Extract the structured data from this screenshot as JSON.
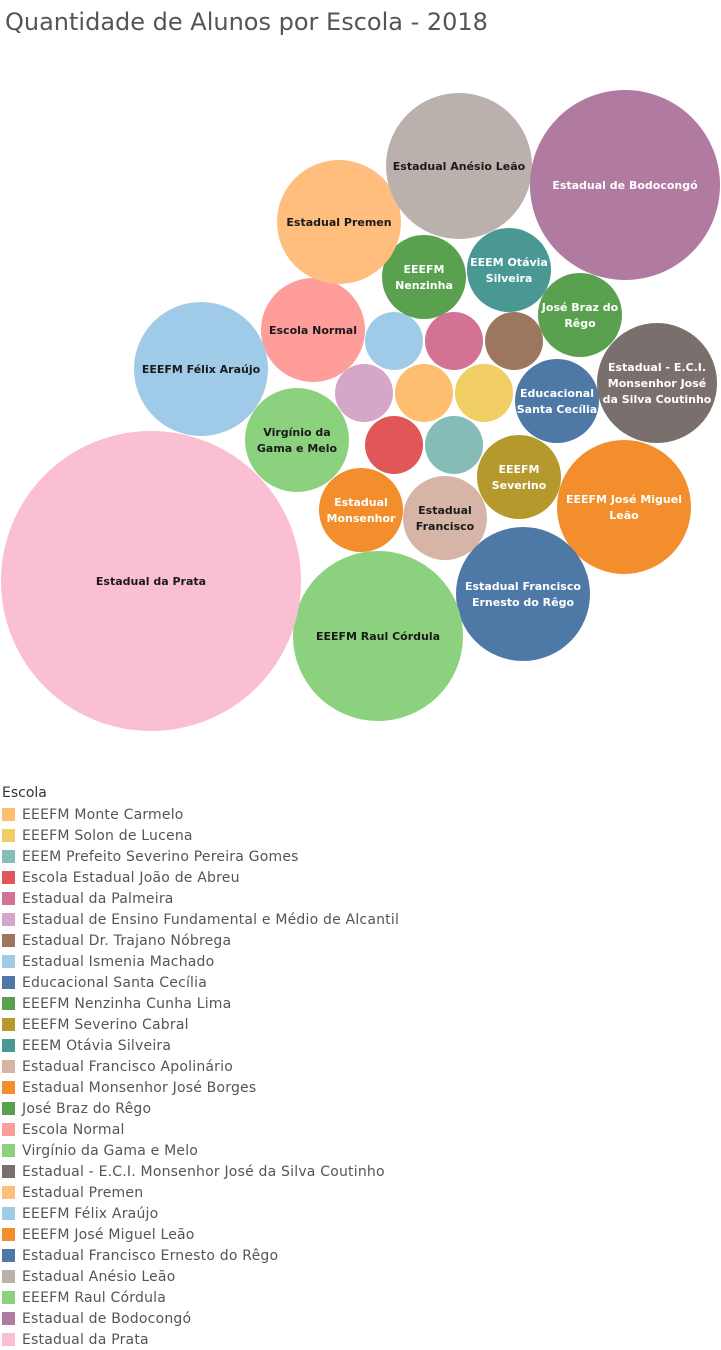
{
  "title": "Quantidade de Alunos por Escola - 2018",
  "legend_title": "Escola",
  "chart_data": {
    "type": "bubble",
    "title": "Quantidade de Alunos por Escola - 2018",
    "legend_title": "Escola",
    "series": [
      {
        "name": "EEEFM Monte Carmelo",
        "color": "#fdbf6f"
      },
      {
        "name": "EEEFM Solon de Lucena",
        "color": "#f1ce63"
      },
      {
        "name": "EEEM Prefeito Severino Pereira Gomes",
        "color": "#86bcb6"
      },
      {
        "name": "Escola Estadual João de Abreu",
        "color": "#e15759"
      },
      {
        "name": "Estadual da Palmeira",
        "color": "#d37295"
      },
      {
        "name": "Estadual de Ensino Fundamental e Médio de Alcantil",
        "color": "#d4a6c8"
      },
      {
        "name": "Estadual Dr. Trajano Nóbrega",
        "color": "#9d7660"
      },
      {
        "name": "Estadual Ismenia Machado",
        "color": "#a0cbe8"
      },
      {
        "name": "Educacional Santa Cecília",
        "label": "Educacional Santa Cecília",
        "color": "#4e79a7"
      },
      {
        "name": "EEEFM Nenzinha Cunha Lima",
        "label": "EEEFM Nenzinha",
        "color": "#59a14f"
      },
      {
        "name": "EEEFM Severino Cabral",
        "label": "EEEFM Severino",
        "color": "#b6992d"
      },
      {
        "name": "EEEM Otávia Silveira",
        "label": "EEEM Otávia Silveira",
        "color": "#499894"
      },
      {
        "name": "Estadual Francisco Apolinário",
        "label": "Estadual Francisco",
        "color": "#d7b5a6"
      },
      {
        "name": "Estadual Monsenhor José Borges",
        "label": "Estadual Monsenhor",
        "color": "#f28e2b"
      },
      {
        "name": "José Braz do Rêgo",
        "label": "José Braz do Rêgo",
        "color": "#59a14f"
      },
      {
        "name": "Escola Normal",
        "label": "Escola Normal",
        "color": "#ff9d9a"
      },
      {
        "name": "Virgínio da Gama e Melo",
        "label": "Virgínio da Gama e Melo",
        "color": "#8cd17d"
      },
      {
        "name": "Estadual - E.C.I. Monsenhor José da Silva Coutinho",
        "label": "Estadual - E.C.I. Monsenhor José da Silva Coutinho",
        "color": "#79706e"
      },
      {
        "name": "Estadual Premen",
        "label": "Estadual Premen",
        "color": "#ffbe7d"
      },
      {
        "name": "EEEFM Félix Araújo",
        "label": "EEEFM Félix Araújo",
        "color": "#a0cbe8"
      },
      {
        "name": "EEEFM José Miguel Leão",
        "label": "EEEFM José Miguel Leão",
        "color": "#f28e2b"
      },
      {
        "name": "Estadual Francisco Ernesto do Rêgo",
        "label": "Estadual Francisco Ernesto do Rêgo",
        "color": "#4e79a7"
      },
      {
        "name": "Estadual Anésio Leão",
        "label": "Estadual Anésio Leão",
        "color": "#bab0ac"
      },
      {
        "name": "EEEFM Raul Córdula",
        "label": "EEEFM Raul Córdula",
        "color": "#8cd17d"
      },
      {
        "name": "Estadual de Bodocongó",
        "label": "Estadual de Bodocongó",
        "color": "#b07aa1"
      },
      {
        "name": "Estadual da Prata",
        "label": "Estadual da Prata",
        "color": "#fabfd2"
      }
    ]
  }
}
